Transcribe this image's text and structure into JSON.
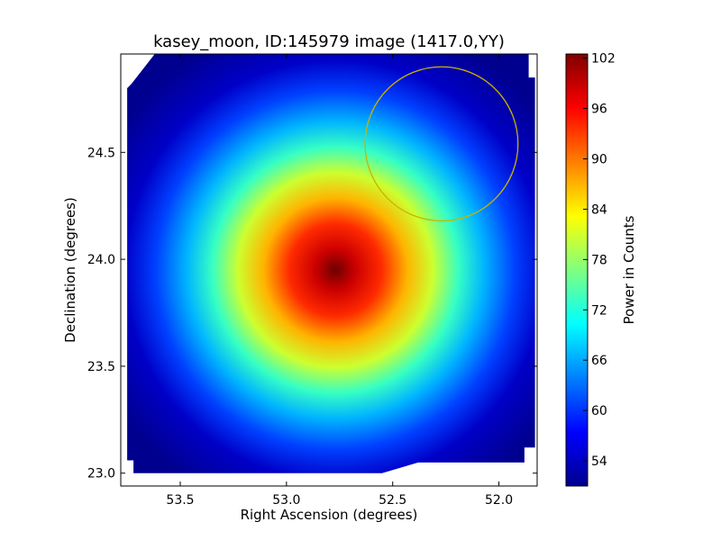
{
  "chart_data": {
    "type": "heatmap",
    "title": "kasey_moon, ID:145979 image (1417.0,YY)",
    "xlabel": "Right Ascension (degrees)",
    "ylabel": "Declination (degrees)",
    "xlim": [
      53.78,
      51.82
    ],
    "ylim": [
      22.94,
      24.96
    ],
    "x_ticks": [
      53.5,
      53.0,
      52.5,
      52.0
    ],
    "x_tick_labels": [
      "53.5",
      "53.0",
      "52.5",
      "52.0"
    ],
    "y_ticks": [
      23.0,
      23.5,
      24.0,
      24.5
    ],
    "y_tick_labels": [
      "23.0",
      "23.5",
      "24.0",
      "24.5"
    ],
    "colormap": "jet",
    "colorbar": {
      "label": "Power in Counts",
      "range": [
        51,
        102.5
      ],
      "ticks": [
        54,
        60,
        66,
        72,
        78,
        84,
        90,
        96,
        102
      ],
      "tick_labels": [
        "54",
        "60",
        "66",
        "72",
        "78",
        "84",
        "90",
        "96",
        "102"
      ]
    },
    "peak": {
      "ra": 52.77,
      "dec": 23.95,
      "value": 102
    },
    "baseline_value": 51,
    "circle_annotation": {
      "center_ra": 52.27,
      "center_dec": 24.54,
      "radius_deg": 0.36,
      "color": "#c8b400"
    },
    "data_footprint_corners": [
      [
        53.62,
        24.96
      ],
      [
        51.86,
        24.96
      ],
      [
        51.86,
        24.85
      ],
      [
        51.83,
        24.85
      ],
      [
        51.83,
        23.12
      ],
      [
        51.88,
        23.12
      ],
      [
        51.88,
        23.05
      ],
      [
        52.38,
        23.05
      ],
      [
        52.55,
        23.0
      ],
      [
        53.72,
        23.0
      ],
      [
        53.72,
        23.06
      ],
      [
        53.75,
        23.06
      ],
      [
        53.75,
        24.8
      ],
      [
        53.73,
        24.82
      ]
    ]
  }
}
